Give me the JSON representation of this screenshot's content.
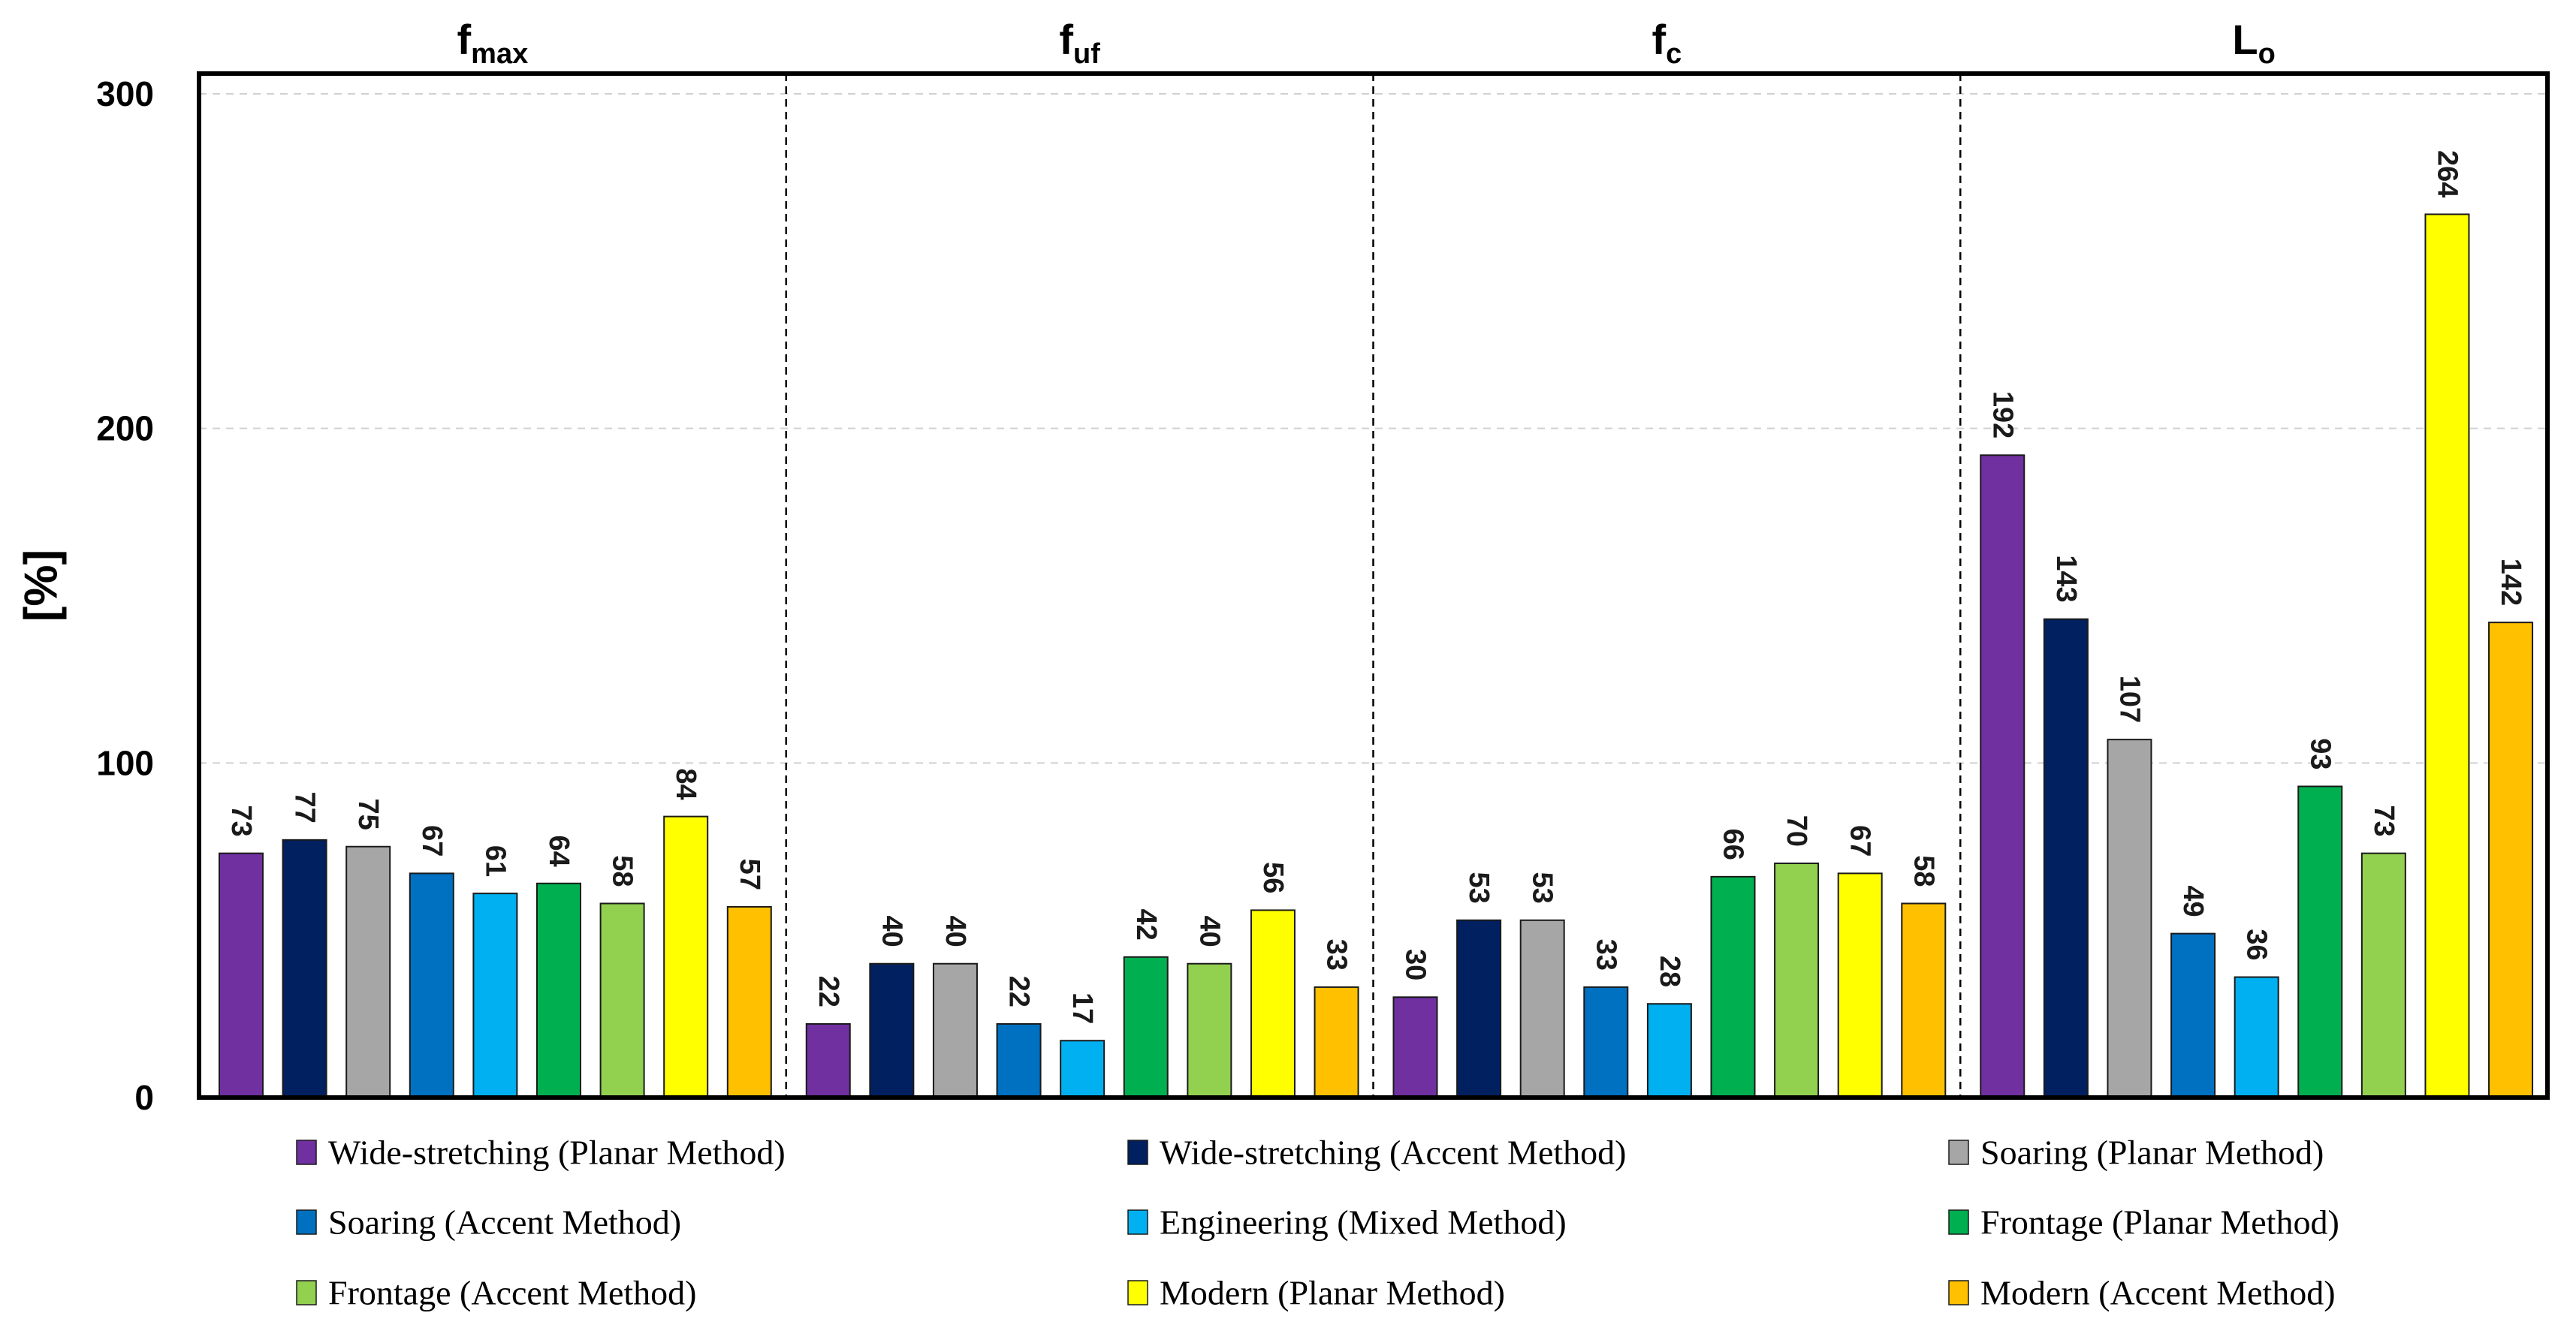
{
  "chart_data": {
    "type": "bar",
    "ylabel": "[%]",
    "xlabel": "",
    "ylim": [
      0,
      300
    ],
    "yticks": [
      0,
      100,
      200,
      300
    ],
    "grid": "horizontal-dashed",
    "legend_position": "bottom",
    "groups": [
      {
        "label": "f",
        "sub": "max"
      },
      {
        "label": "f",
        "sub": "uf"
      },
      {
        "label": "f",
        "sub": "c"
      },
      {
        "label": "L",
        "sub": "o"
      }
    ],
    "series": [
      {
        "name": "Wide-stretching (Planar Method)",
        "color": "#7030A0",
        "values": [
          73,
          22,
          30,
          192
        ]
      },
      {
        "name": "Wide-stretching (Accent Method)",
        "color": "#002060",
        "values": [
          77,
          40,
          53,
          143
        ]
      },
      {
        "name": "Soaring  (Planar Method)",
        "color": "#A6A6A6",
        "values": [
          75,
          40,
          53,
          107
        ]
      },
      {
        "name": "Soaring  (Accent Method)",
        "color": "#0070C0",
        "values": [
          67,
          22,
          33,
          49
        ]
      },
      {
        "name": "Engineering (Mixed Method)",
        "color": "#00B0F0",
        "values": [
          61,
          17,
          28,
          36
        ]
      },
      {
        "name": "Frontage (Planar Method)",
        "color": "#00B050",
        "values": [
          64,
          42,
          66,
          93
        ]
      },
      {
        "name": "Frontage (Accent Method)",
        "color": "#92D050",
        "values": [
          58,
          40,
          70,
          73
        ]
      },
      {
        "name": "Modern (Planar Method)",
        "color": "#FFFF00",
        "values": [
          84,
          56,
          67,
          264
        ]
      },
      {
        "name": "Modern (Accent Method)",
        "color": "#FFC000",
        "values": [
          57,
          33,
          58,
          142
        ]
      }
    ]
  }
}
